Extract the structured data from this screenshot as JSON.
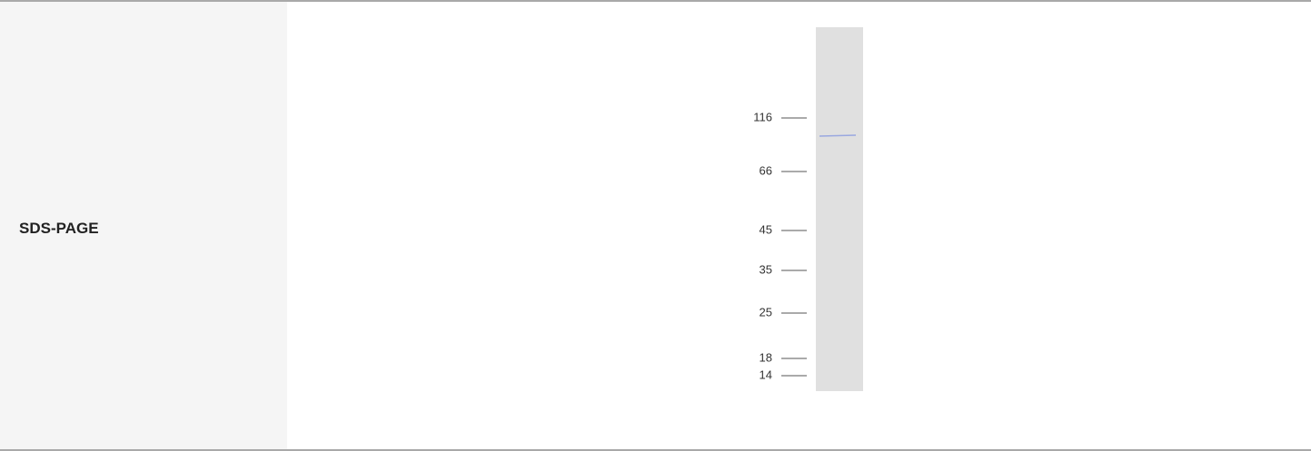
{
  "row": {
    "label": "SDS-PAGE",
    "gel": {
      "markers": [
        "116",
        "66",
        "45",
        "35",
        "25",
        "18",
        "14"
      ]
    }
  }
}
